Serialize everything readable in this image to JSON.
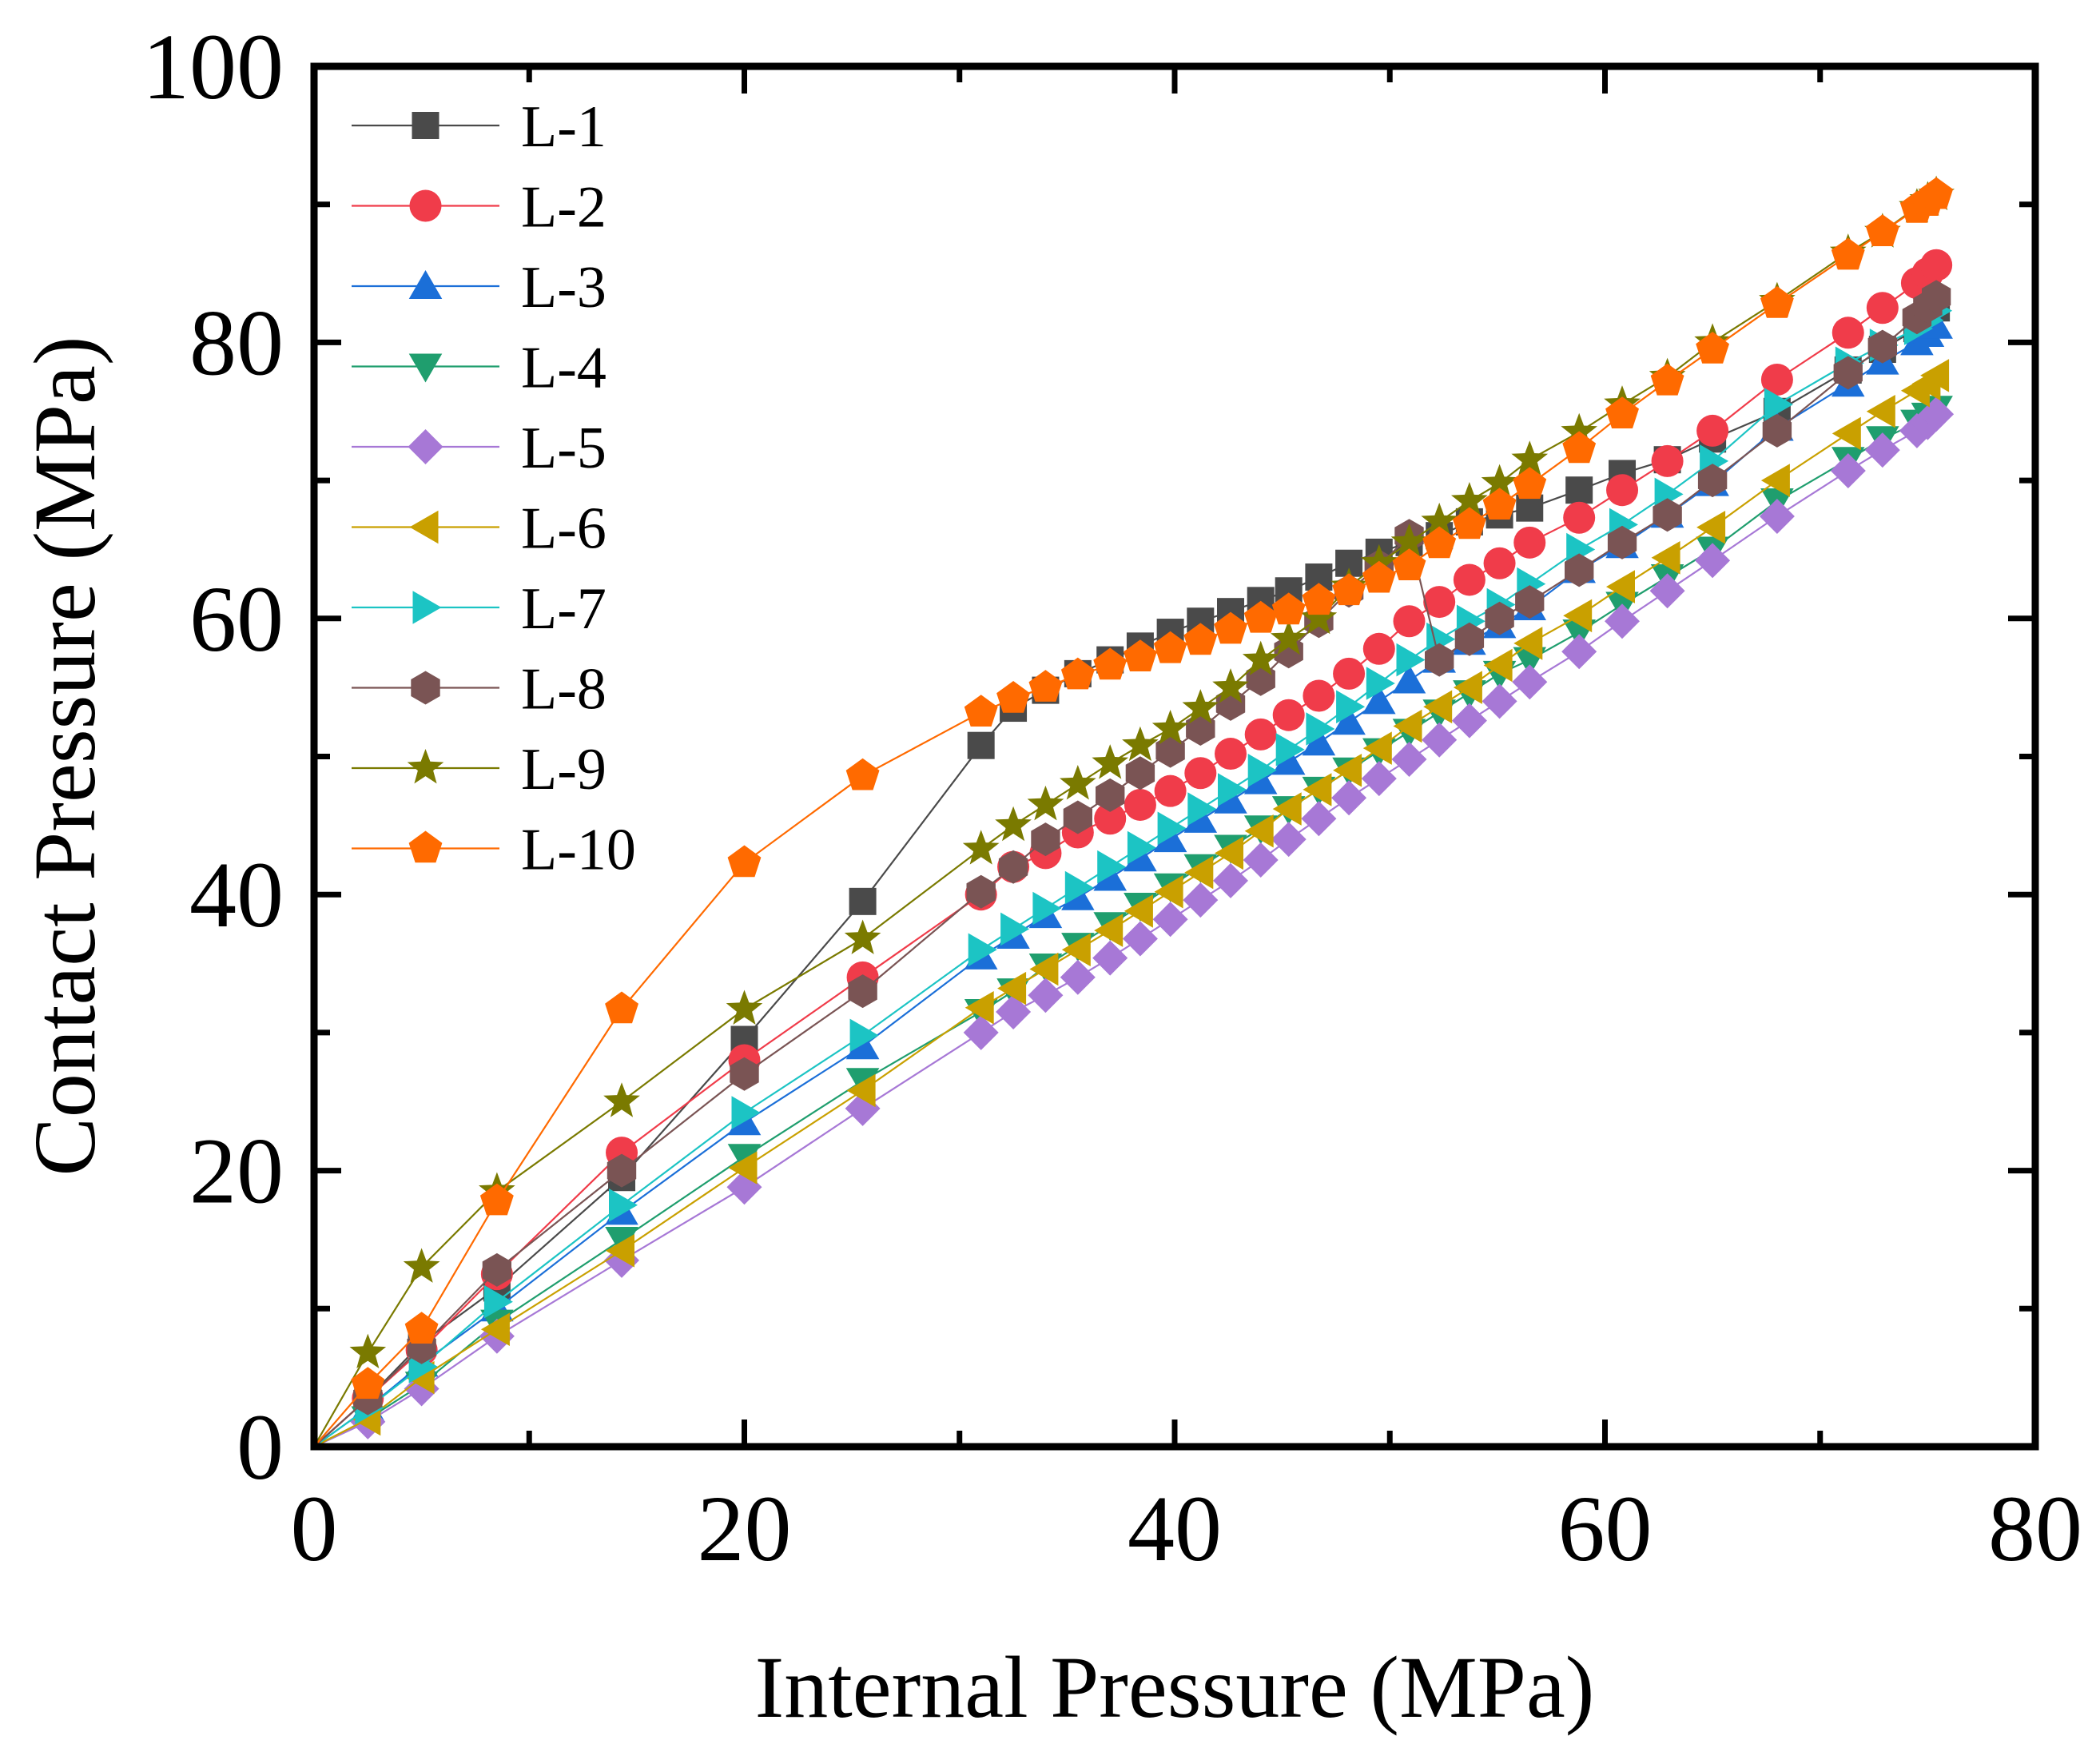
{
  "chart_data": {
    "type": "line",
    "title": "",
    "xlabel": "Internal Pressure (MPa)",
    "ylabel": "Contact Pressure (MPa)",
    "xlim": [
      0,
      80
    ],
    "ylim": [
      0,
      100
    ],
    "xticks": [
      0,
      20,
      40,
      60,
      80
    ],
    "yticks": [
      0,
      20,
      40,
      60,
      80,
      100
    ],
    "xtick_labels": [
      "0",
      "20",
      "40",
      "60",
      "80"
    ],
    "ytick_labels": [
      "0",
      "20",
      "40",
      "60",
      "80",
      "100"
    ],
    "grid": false,
    "legend_position": "top-left",
    "x": [
      0,
      2.5,
      5,
      8.5,
      14.3,
      20,
      25.5,
      31,
      32.5,
      34,
      35.5,
      37,
      38.4,
      39.8,
      41.2,
      42.6,
      44,
      45.3,
      46.7,
      48.1,
      49.5,
      50.9,
      52.3,
      53.7,
      55.1,
      56.5,
      58.8,
      60.8,
      62.9,
      65,
      68,
      71.3,
      72.9,
      74.5,
      75.0,
      75.4
    ],
    "series": [
      {
        "name": "L-1",
        "color": "#4a4a4a",
        "marker": "square",
        "values": [
          0,
          3.5,
          7.5,
          11.5,
          19.5,
          29.5,
          39.5,
          50.8,
          53.5,
          54.8,
          56.0,
          57.0,
          58.0,
          59.0,
          59.8,
          60.5,
          61.3,
          62.0,
          63.0,
          64.0,
          64.8,
          65.5,
          66.0,
          67.0,
          67.5,
          68.0,
          69.3,
          70.5,
          71.5,
          73.0,
          75.0,
          78.0,
          79.5,
          81.0,
          81.8,
          82.5
        ]
      },
      {
        "name": "L-2",
        "color": "#f03c4a",
        "marker": "circle",
        "values": [
          0,
          3.5,
          7.0,
          12.5,
          21.3,
          28.0,
          34.0,
          40.0,
          42.0,
          43.0,
          44.5,
          45.5,
          46.5,
          47.5,
          48.8,
          50.2,
          51.6,
          53.0,
          54.4,
          56.0,
          57.8,
          59.8,
          61.2,
          62.8,
          64.0,
          65.5,
          67.3,
          69.3,
          71.4,
          73.6,
          77.3,
          80.7,
          82.5,
          84.3,
          85.0,
          85.6
        ]
      },
      {
        "name": "L-3",
        "color": "#1b6fd8",
        "marker": "triangle-up",
        "values": [
          0,
          2.8,
          6.0,
          10.0,
          17.0,
          23.5,
          29.0,
          35.5,
          37.0,
          38.5,
          39.8,
          41.2,
          42.6,
          44.0,
          45.4,
          46.8,
          48.2,
          49.6,
          51.0,
          52.5,
          54.0,
          55.5,
          57.0,
          58.3,
          59.5,
          60.8,
          63.5,
          65.3,
          67.5,
          69.8,
          73.8,
          77.0,
          78.6,
          80.0,
          80.6,
          81.2
        ]
      },
      {
        "name": "L-4",
        "color": "#1f9e6e",
        "marker": "triangle-down",
        "values": [
          0,
          2.0,
          4.5,
          9.0,
          15.0,
          21.0,
          26.5,
          31.5,
          33.0,
          34.8,
          36.3,
          37.8,
          39.2,
          40.6,
          42.0,
          43.4,
          44.8,
          46.2,
          47.6,
          49.0,
          50.4,
          51.8,
          53.2,
          54.6,
          56.0,
          57.0,
          59.0,
          61.0,
          63.0,
          65.0,
          68.5,
          71.5,
          73.0,
          74.2,
          74.7,
          75.2
        ]
      },
      {
        "name": "L-5",
        "color": "#a778d6",
        "marker": "diamond",
        "values": [
          0,
          1.8,
          4.2,
          8.0,
          13.5,
          18.8,
          24.5,
          30.0,
          31.5,
          32.7,
          34.0,
          35.4,
          36.8,
          38.2,
          39.6,
          41.0,
          42.5,
          44.0,
          45.5,
          47.0,
          48.4,
          49.8,
          51.2,
          52.6,
          54.0,
          55.4,
          57.6,
          59.8,
          62.0,
          64.2,
          67.4,
          70.7,
          72.2,
          73.6,
          74.2,
          74.8
        ]
      },
      {
        "name": "L-6",
        "color": "#c9a000",
        "marker": "triangle-left",
        "values": [
          0,
          2.0,
          5.0,
          8.5,
          14.2,
          20.2,
          25.8,
          31.8,
          33.2,
          34.6,
          36.0,
          37.4,
          38.8,
          40.2,
          41.6,
          43.0,
          44.6,
          46.2,
          47.6,
          49.0,
          50.6,
          52.2,
          53.6,
          55.0,
          56.6,
          58.2,
          60.2,
          62.3,
          64.4,
          66.6,
          70.0,
          73.4,
          75.0,
          76.5,
          77.0,
          77.6
        ]
      },
      {
        "name": "L-7",
        "color": "#1cc4c4",
        "marker": "triangle-right",
        "values": [
          0,
          2.8,
          5.8,
          10.5,
          17.5,
          24.2,
          29.8,
          36.0,
          37.5,
          39.0,
          40.5,
          42.0,
          43.4,
          44.8,
          46.2,
          47.6,
          49.0,
          50.5,
          52.0,
          53.6,
          55.3,
          57.0,
          58.5,
          59.8,
          61.0,
          62.5,
          65.0,
          66.8,
          69.0,
          71.4,
          75.5,
          78.5,
          79.8,
          81.0,
          81.6,
          82.3
        ]
      },
      {
        "name": "L-8",
        "color": "#7a5454",
        "marker": "hexagon",
        "values": [
          0,
          3.5,
          7.2,
          12.8,
          20.0,
          27.0,
          33.0,
          40.2,
          42.0,
          44.0,
          45.6,
          47.2,
          48.8,
          50.4,
          52.0,
          53.8,
          55.6,
          57.6,
          59.8,
          62.0,
          63.8,
          66.0,
          57.0,
          58.5,
          60.0,
          61.2,
          63.5,
          65.5,
          67.5,
          70.0,
          73.6,
          77.8,
          79.7,
          81.8,
          82.6,
          83.3
        ]
      },
      {
        "name": "L-9",
        "color": "#7a7a00",
        "marker": "star",
        "values": [
          0,
          6.8,
          13.0,
          18.5,
          25.0,
          31.7,
          36.8,
          43.3,
          45.0,
          46.5,
          48.0,
          49.5,
          50.8,
          52.0,
          53.5,
          55.0,
          57.0,
          58.5,
          60.0,
          62.3,
          64.0,
          65.5,
          67.0,
          68.5,
          69.8,
          71.5,
          73.5,
          75.5,
          77.5,
          80.0,
          83.0,
          86.5,
          88.0,
          89.8,
          90.3,
          90.7
        ]
      },
      {
        "name": "L-10",
        "color": "#ff6a00",
        "marker": "pentagon",
        "values": [
          0,
          4.5,
          8.5,
          17.8,
          31.7,
          42.3,
          48.6,
          53.2,
          54.2,
          55.0,
          55.9,
          56.6,
          57.2,
          57.8,
          58.4,
          59.2,
          60.0,
          60.6,
          61.3,
          62.0,
          62.9,
          63.8,
          65.4,
          66.8,
          68.2,
          69.7,
          72.3,
          74.8,
          77.2,
          79.5,
          82.8,
          86.3,
          88.0,
          89.7,
          90.2,
          90.7
        ]
      }
    ]
  }
}
